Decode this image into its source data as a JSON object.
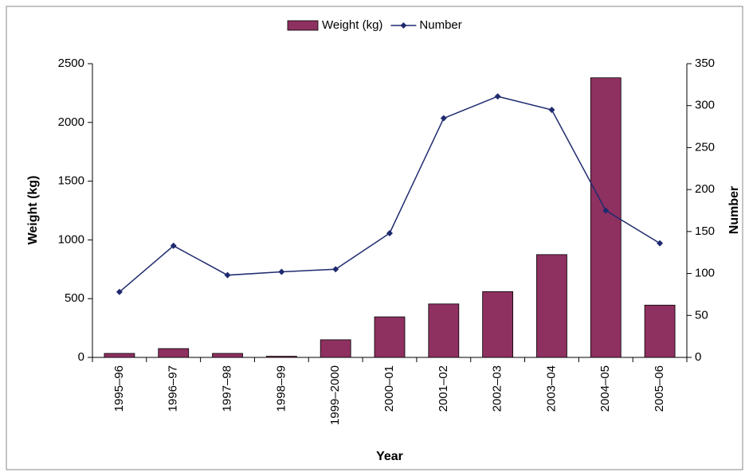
{
  "chart_data": {
    "type": "bar",
    "categories": [
      "1995–96",
      "1996–97",
      "1997–98",
      "1998–99",
      "1999–2000",
      "2000–01",
      "2001–02",
      "2002–03",
      "2003–04",
      "2004–05",
      "2005–06"
    ],
    "series": [
      {
        "name": "Weight (kg)",
        "color": "#8e3060",
        "values": [
          34,
          75,
          34,
          10,
          150,
          345,
          455,
          560,
          875,
          2380,
          445
        ]
      },
      {
        "name": "Number",
        "color": "#1f2a6e",
        "type": "line",
        "axis": "y2",
        "values": [
          78,
          133,
          98,
          102,
          105,
          148,
          285,
          311,
          295,
          175,
          136
        ]
      }
    ],
    "xlabel": "Year",
    "ylabel": "Weight (kg)",
    "y2label": "Number",
    "ylim": [
      0,
      2500
    ],
    "yticks": [
      0,
      500,
      1000,
      1500,
      2000,
      2500
    ],
    "y2lim": [
      0,
      350
    ],
    "y2ticks": [
      0,
      50,
      100,
      150,
      200,
      250,
      300,
      350
    ],
    "legend": "top",
    "grid": false
  }
}
